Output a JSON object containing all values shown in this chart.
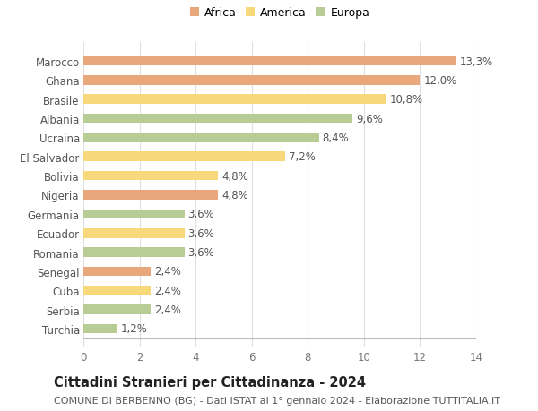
{
  "categories": [
    "Turchia",
    "Serbia",
    "Cuba",
    "Senegal",
    "Romania",
    "Ecuador",
    "Germania",
    "Nigeria",
    "Bolivia",
    "El Salvador",
    "Ucraina",
    "Albania",
    "Brasile",
    "Ghana",
    "Marocco"
  ],
  "values": [
    1.2,
    2.4,
    2.4,
    2.4,
    3.6,
    3.6,
    3.6,
    4.8,
    4.8,
    7.2,
    8.4,
    9.6,
    10.8,
    12.0,
    13.3
  ],
  "labels": [
    "1,2%",
    "2,4%",
    "2,4%",
    "2,4%",
    "3,6%",
    "3,6%",
    "3,6%",
    "4,8%",
    "4,8%",
    "7,2%",
    "8,4%",
    "9,6%",
    "10,8%",
    "12,0%",
    "13,3%"
  ],
  "colors": [
    "#b8cc96",
    "#b8cc96",
    "#f7d97c",
    "#e8a87c",
    "#b8cc96",
    "#f7d97c",
    "#b8cc96",
    "#e8a87c",
    "#f7d97c",
    "#f7d97c",
    "#b8cc96",
    "#b8cc96",
    "#f7d97c",
    "#e8a87c",
    "#e8a87c"
  ],
  "legend_labels": [
    "Africa",
    "America",
    "Europa"
  ],
  "legend_colors": [
    "#e8a87c",
    "#f7d97c",
    "#b8cc96"
  ],
  "title": "Cittadini Stranieri per Cittadinanza - 2024",
  "subtitle": "COMUNE DI BERBENNO (BG) - Dati ISTAT al 1° gennaio 2024 - Elaborazione TUTTITALIA.IT",
  "xlim": [
    0,
    14
  ],
  "xticks": [
    0,
    2,
    4,
    6,
    8,
    10,
    12,
    14
  ],
  "bg_color": "#ffffff",
  "grid_color": "#e0e0e0",
  "bar_height": 0.5,
  "label_fontsize": 8.5,
  "ytick_fontsize": 8.5,
  "xtick_fontsize": 8.5,
  "title_fontsize": 10.5,
  "subtitle_fontsize": 8.0
}
